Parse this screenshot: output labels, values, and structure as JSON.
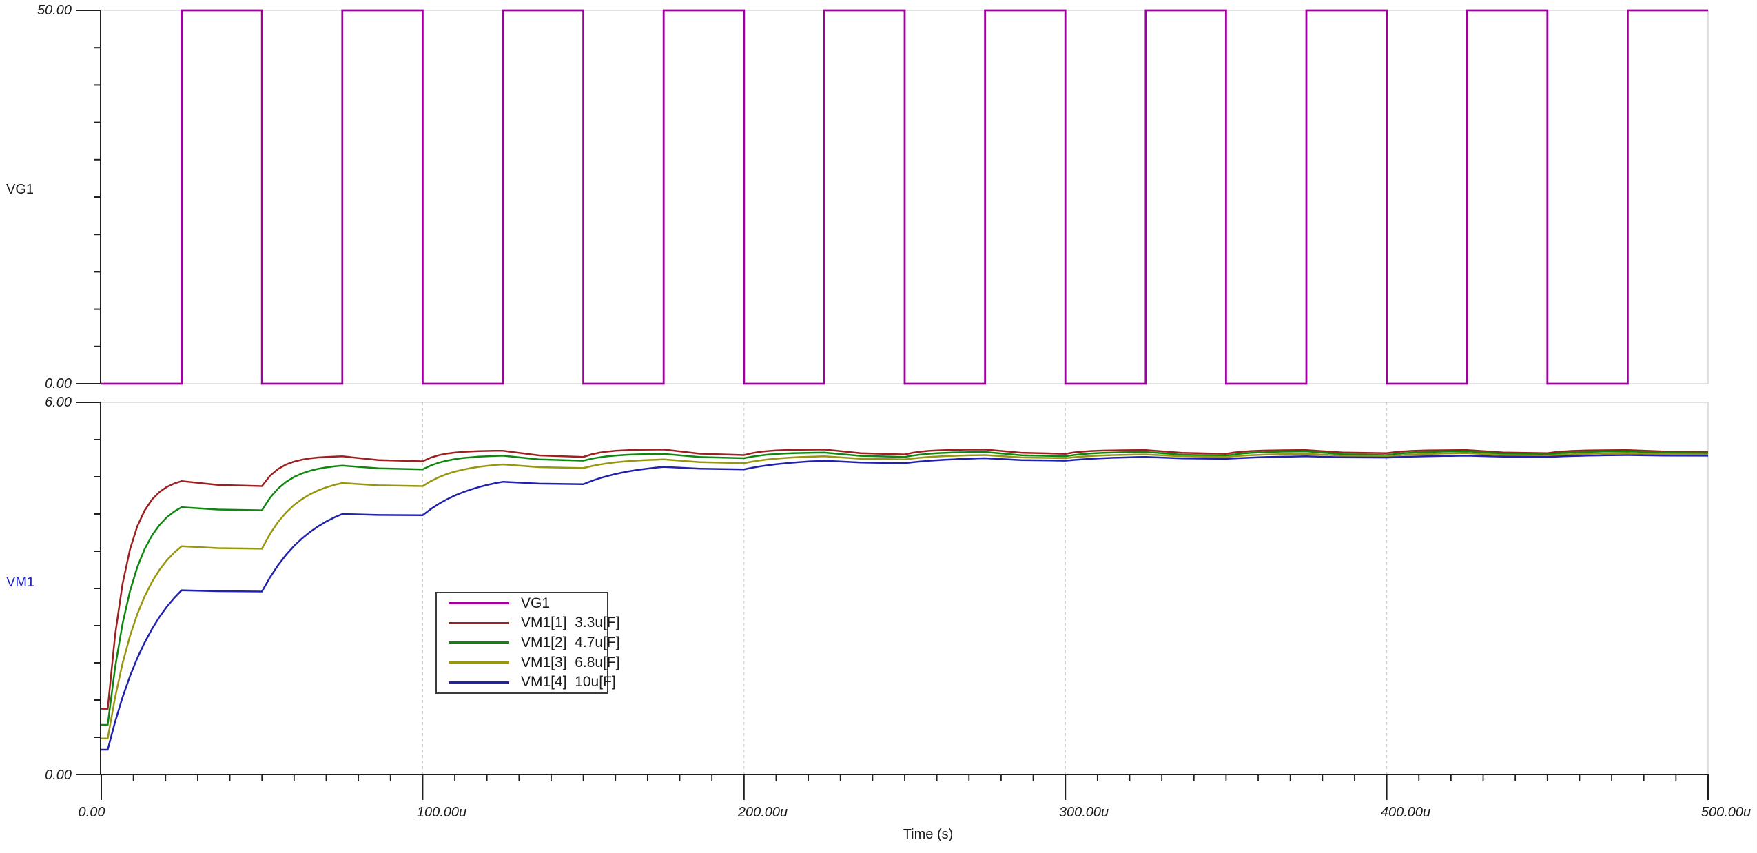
{
  "labels": {
    "vg1_panel": "VG1",
    "vm1_panel": "VM1",
    "x_axis_title": "Time (s)",
    "y_top_max": "50.00",
    "y_top_min": "0.00",
    "y_bot_max": "6.00",
    "y_bot_min": "0.00"
  },
  "colors": {
    "vm1_label": "#2323c0",
    "grid_solid": "#d9d9d9",
    "grid_dashed": "#cfcfcf",
    "axis": "#1f1f1f"
  },
  "chart_data": {
    "type": "line",
    "panels": [
      {
        "name": "VG1",
        "ymin": 0,
        "ymax": 50,
        "divisions": 10,
        "ytick_max": "50.00",
        "ytick_min": "0.00"
      },
      {
        "name": "VM1",
        "ymin": 0,
        "ymax": 6,
        "divisions": 10,
        "ytick_max": "6.00",
        "ytick_min": "0.00"
      }
    ],
    "x": {
      "label": "Time (s)",
      "min_us": 0,
      "max_us": 500,
      "minor_tick_us": 10,
      "major_tick_us": 100,
      "tick_labels": [
        "0.00",
        "100.00u",
        "200.00u",
        "300.00u",
        "400.00u",
        "500.00u"
      ],
      "grid_dashed_at_us": [
        100,
        200,
        300,
        400
      ]
    },
    "vg1_wave": {
      "name": "VG1",
      "color": "#a100a1",
      "low_v": 0,
      "high_v": 50,
      "first_rise_us": 25,
      "high_duration_us": 25,
      "period_us": 50,
      "end_us": 500
    },
    "series": [
      {
        "name": "VM1[1]",
        "cap": "3.3u[F]",
        "color": "#9e1f1f",
        "tau_us": 6,
        "start_v": 1.06,
        "flat_end_us": 2,
        "peaks": [
          [
            25,
            4.73
          ],
          [
            75,
            5.13
          ],
          [
            125,
            5.22
          ],
          [
            175,
            5.24
          ],
          [
            225,
            5.24
          ],
          [
            275,
            5.24
          ],
          [
            325,
            5.23
          ],
          [
            375,
            5.23
          ],
          [
            425,
            5.23
          ],
          [
            475,
            5.23
          ]
        ],
        "troughs": [
          [
            50,
            4.65
          ],
          [
            100,
            5.05
          ],
          [
            150,
            5.12
          ],
          [
            200,
            5.15
          ],
          [
            250,
            5.16
          ],
          [
            300,
            5.17
          ],
          [
            350,
            5.17
          ],
          [
            400,
            5.18
          ],
          [
            450,
            5.18
          ],
          [
            500,
            5.2
          ]
        ]
      },
      {
        "name": "VM1[2]",
        "cap": "4.7u[F]",
        "color": "#0e870e",
        "tau_us": 8,
        "start_v": 0.8,
        "flat_end_us": 2,
        "peaks": [
          [
            25,
            4.31
          ],
          [
            75,
            4.98
          ],
          [
            125,
            5.14
          ],
          [
            175,
            5.17
          ],
          [
            225,
            5.19
          ],
          [
            275,
            5.2
          ],
          [
            325,
            5.2
          ],
          [
            375,
            5.21
          ],
          [
            425,
            5.21
          ],
          [
            475,
            5.21
          ]
        ],
        "troughs": [
          [
            50,
            4.26
          ],
          [
            100,
            4.92
          ],
          [
            150,
            5.06
          ],
          [
            200,
            5.1
          ],
          [
            250,
            5.12
          ],
          [
            300,
            5.13
          ],
          [
            350,
            5.14
          ],
          [
            400,
            5.15
          ],
          [
            450,
            5.16
          ],
          [
            500,
            5.18
          ]
        ]
      },
      {
        "name": "VM1[3]",
        "cap": "6.8u[F]",
        "color": "#96960f",
        "tau_us": 11,
        "start_v": 0.58,
        "flat_end_us": 2,
        "peaks": [
          [
            25,
            3.68
          ],
          [
            75,
            4.7
          ],
          [
            125,
            5.0
          ],
          [
            175,
            5.08
          ],
          [
            225,
            5.13
          ],
          [
            275,
            5.15
          ],
          [
            325,
            5.16
          ],
          [
            375,
            5.17
          ],
          [
            425,
            5.18
          ],
          [
            475,
            5.18
          ]
        ],
        "troughs": [
          [
            50,
            3.64
          ],
          [
            100,
            4.65
          ],
          [
            150,
            4.94
          ],
          [
            200,
            5.02
          ],
          [
            250,
            5.08
          ],
          [
            300,
            5.1
          ],
          [
            350,
            5.12
          ],
          [
            400,
            5.13
          ],
          [
            450,
            5.14
          ],
          [
            500,
            5.16
          ]
        ]
      },
      {
        "name": "VM1[4]",
        "cap": "10u[F]",
        "color": "#2121ae",
        "tau_us": 16,
        "start_v": 0.4,
        "flat_end_us": 2,
        "peaks": [
          [
            25,
            2.97
          ],
          [
            75,
            4.2
          ],
          [
            125,
            4.72
          ],
          [
            175,
            4.96
          ],
          [
            225,
            5.06
          ],
          [
            275,
            5.1
          ],
          [
            325,
            5.12
          ],
          [
            375,
            5.13
          ],
          [
            425,
            5.14
          ],
          [
            475,
            5.15
          ]
        ],
        "troughs": [
          [
            50,
            2.95
          ],
          [
            100,
            4.18
          ],
          [
            150,
            4.68
          ],
          [
            200,
            4.92
          ],
          [
            250,
            5.02
          ],
          [
            300,
            5.06
          ],
          [
            350,
            5.09
          ],
          [
            400,
            5.11
          ],
          [
            450,
            5.12
          ],
          [
            500,
            5.14
          ]
        ]
      }
    ],
    "legend": {
      "items": [
        {
          "name": "VG1",
          "cap": "",
          "color": "#a100a1"
        },
        {
          "name": "VM1[1]",
          "cap": "3.3u[F]",
          "color": "#9e1f1f"
        },
        {
          "name": "VM1[2]",
          "cap": "4.7u[F]",
          "color": "#0e870e"
        },
        {
          "name": "VM1[3]",
          "cap": "6.8u[F]",
          "color": "#96960f"
        },
        {
          "name": "VM1[4]",
          "cap": "10u[F]",
          "color": "#2121ae"
        }
      ]
    }
  }
}
